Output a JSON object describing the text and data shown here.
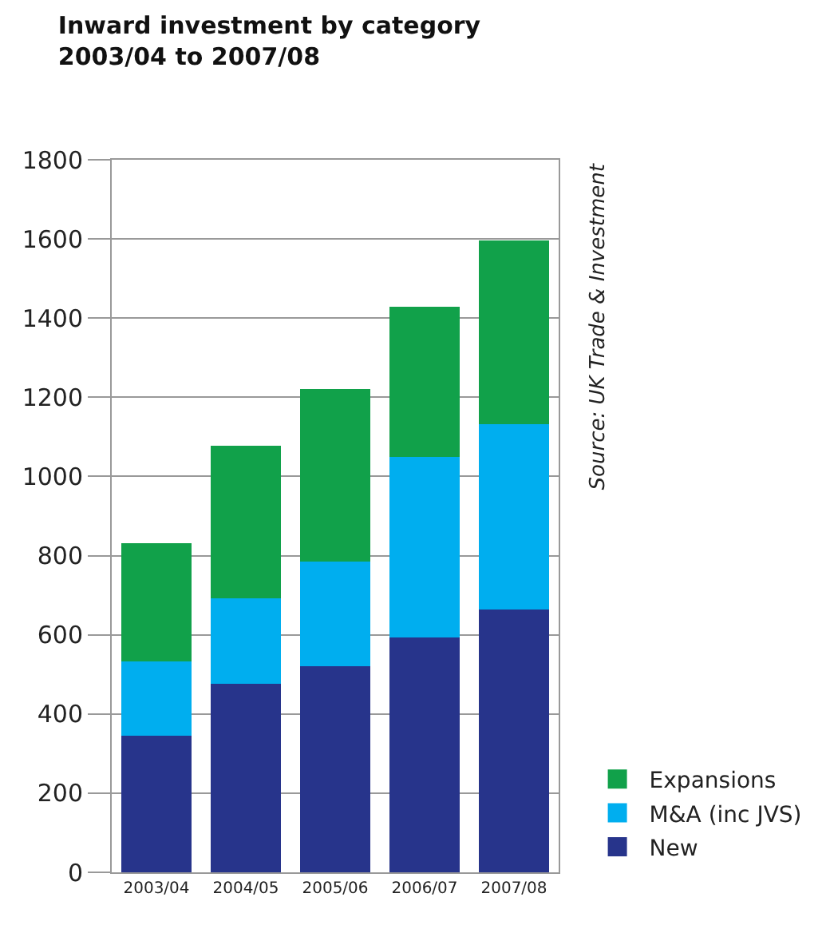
{
  "chart_data": {
    "type": "bar",
    "title": "Inward investment by category\n2003/04 to 2007/08",
    "categories": [
      "2003/04",
      "2004/05",
      "2005/06",
      "2006/07",
      "2007/08"
    ],
    "stacked": true,
    "series": [
      {
        "name": "New",
        "color": "#27348b",
        "values": [
          345,
          476,
          521,
          594,
          664
        ]
      },
      {
        "name": "M&A (inc JVS)",
        "color": "#00aeef",
        "values": [
          188,
          216,
          265,
          456,
          468
        ]
      },
      {
        "name": "Expansions",
        "color": "#11a14a",
        "values": [
          298,
          386,
          435,
          379,
          464
        ]
      }
    ],
    "ylim": [
      0,
      1800
    ],
    "yticks": [
      0,
      200,
      400,
      600,
      800,
      1000,
      1200,
      1400,
      1600,
      1800
    ],
    "grid": "y",
    "legend": "bottom right",
    "annotations": [
      "Source: UK Trade & Investment"
    ]
  }
}
